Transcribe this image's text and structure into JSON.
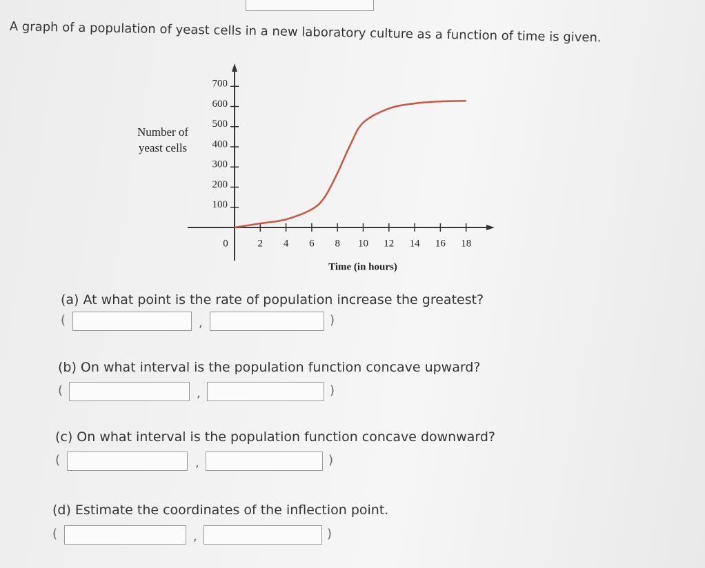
{
  "intro": "A graph of a population of yeast cells in a new laboratory culture as a function of time is given.",
  "chart_data": {
    "type": "line",
    "x_label": "Time (in hours)",
    "y_label": "Number of yeast cells",
    "x": [
      0,
      2,
      4,
      6,
      7,
      8,
      9,
      10,
      12,
      14,
      16,
      18
    ],
    "values": [
      0,
      20,
      40,
      90,
      150,
      270,
      410,
      520,
      590,
      615,
      625,
      628
    ],
    "color": "#c9573f",
    "xlim": [
      0,
      20
    ],
    "ylim": [
      0,
      800
    ],
    "xticks": [
      0,
      2,
      4,
      6,
      8,
      10,
      12,
      14,
      16,
      18
    ],
    "yticks": [
      100,
      200,
      300,
      400,
      500,
      600,
      700
    ]
  },
  "questions": [
    {
      "text": "(a) At what point is the rate of population increase the greatest?",
      "open": "(",
      "separator": ",",
      "close": ")"
    },
    {
      "text": "(b) On what interval is the population function concave upward?",
      "open": "(",
      "separator": ",",
      "close": ")"
    },
    {
      "text": "(c) On what interval is the population function concave downward?",
      "open": "(",
      "separator": ",",
      "close": ")"
    },
    {
      "text": "(d) Estimate the coordinates of the inflection point.",
      "open": "(",
      "separator": ",",
      "close": ")"
    }
  ]
}
